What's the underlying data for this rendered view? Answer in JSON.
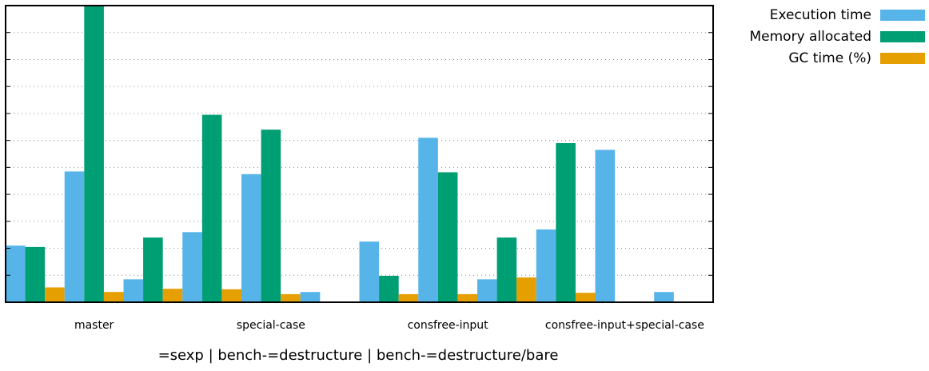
{
  "chart_data": {
    "type": "bar",
    "categories": [
      "master",
      "special-case",
      "consfree-input",
      "consfree-input+special-case"
    ],
    "subgroups": [
      "=sexp",
      "bench-=destructure",
      "bench-=destructure/bare"
    ],
    "xlabel": "=sexp | bench-=destructure | bench-=destructure/bare",
    "ylim": [
      0,
      11
    ],
    "y_tick_count": 11,
    "y_tick_labels_shown": false,
    "grid": "horizontal-dotted",
    "legend_position": "top-right-outside",
    "series": [
      {
        "name": "Execution time",
        "color": "#56B4E9",
        "values": [
          [
            2.1,
            4.85,
            0.85
          ],
          [
            2.6,
            4.75,
            0.38
          ],
          [
            2.25,
            6.1,
            0.85
          ],
          [
            2.7,
            5.65,
            0.38
          ]
        ]
      },
      {
        "name": "Memory allocated",
        "color": "#009E73",
        "values": [
          [
            2.05,
            11.0,
            2.4
          ],
          [
            6.95,
            6.4,
            0.0
          ],
          [
            0.98,
            4.82,
            2.4
          ],
          [
            5.9,
            0.0,
            0.0
          ]
        ]
      },
      {
        "name": "GC time (%)",
        "color": "#E69F00",
        "values": [
          [
            0.55,
            0.38,
            0.5
          ],
          [
            0.48,
            0.3,
            0.0
          ],
          [
            0.3,
            0.3,
            0.92
          ],
          [
            0.35,
            0.02,
            0.0
          ]
        ]
      }
    ]
  }
}
